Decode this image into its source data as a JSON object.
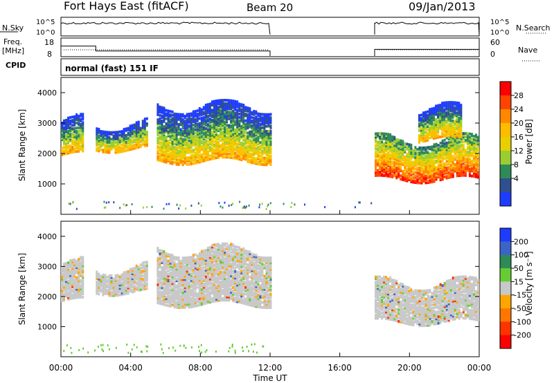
{
  "header": {
    "title": "Fort Hays East (fitACF)",
    "beam": "Beam 20",
    "date": "09/Jan/2013"
  },
  "panels": {
    "noise_label": "N.Sky",
    "noise_ticks": [
      "10^5",
      "10^0"
    ],
    "noise_right_ticks": [
      "10^5",
      "10^0"
    ],
    "noise_right_label": "N.Search",
    "freq_label": "Freq.",
    "freq_unit": "[MHz]",
    "freq_ticks": [
      "18",
      "8"
    ],
    "nave_ticks": [
      "60",
      "0"
    ],
    "nave_label": "Nave",
    "cpid_label": "CPID",
    "mode_text": "normal (fast) 151 IF"
  },
  "colorbars": {
    "power": {
      "label": "Power [dB]",
      "ticks": [
        "28",
        "24",
        "20",
        "16",
        "12",
        "8",
        "4"
      ],
      "colors": [
        "#ff0000",
        "#ff4400",
        "#ff8800",
        "#ffbb00",
        "#e8d000",
        "#9acd32",
        "#2e8b57",
        "#2f4f8f",
        "#1e3cff"
      ]
    },
    "velocity": {
      "label": "Velocity [m s⁻¹]",
      "ticks": [
        "200",
        "100",
        "50",
        "15",
        "-15",
        "-50",
        "-100",
        "-200"
      ],
      "colors": [
        "#1e3cff",
        "#3c64c8",
        "#2e8b57",
        "#66cc33",
        "#c8c8c8",
        "#ffa500",
        "#ff7700",
        "#ff3300",
        "#ff0000"
      ]
    }
  },
  "axes": {
    "ylabel": "Slant Range [km]",
    "yticks": [
      "4000",
      "3000",
      "2000",
      "1000"
    ],
    "xticks": [
      "00:00",
      "04:00",
      "08:00",
      "12:00",
      "16:00",
      "20:00",
      "00:00"
    ],
    "xlabel": "Time UT"
  },
  "chart_data": [
    {
      "type": "line",
      "name_label": "N.Sky",
      "x_hours_segments": [
        [
          0,
          12
        ],
        [
          18,
          24
        ]
      ],
      "level": "near 10^5",
      "ylim": [
        "10^0",
        "10^5"
      ]
    },
    {
      "type": "line",
      "freq_mhz_steps": [
        {
          "x": [
            0,
            2
          ],
          "y": 14
        },
        {
          "x": [
            2,
            12
          ],
          "y": 11
        },
        {
          "x": [
            18,
            24
          ],
          "y": 12
        }
      ],
      "nave_level": 30,
      "freq_ylim": [
        8,
        18
      ],
      "nave_ylim": [
        0,
        60
      ]
    },
    {
      "type": "heatmap",
      "quantity": "Power [dB]",
      "xlim": [
        0,
        24
      ],
      "ylim": [
        0,
        4500
      ],
      "bands": [
        {
          "x": [
            0.0,
            1.3
          ],
          "range": [
            2000,
            3100
          ],
          "peak_db": 24
        },
        {
          "x": [
            2.0,
            5.0
          ],
          "range": [
            2200,
            3000
          ],
          "peak_db": 20
        },
        {
          "x": [
            5.5,
            12.0
          ],
          "range": [
            1800,
            3600
          ],
          "peak_db": 24
        },
        {
          "x": [
            18.0,
            24.0
          ],
          "range": [
            1200,
            2500
          ],
          "peak_db": 28
        },
        {
          "x": [
            20.5,
            23.0
          ],
          "range": [
            2500,
            3500
          ],
          "peak_db": 8
        }
      ]
    },
    {
      "type": "heatmap",
      "quantity": "Velocity",
      "xlim": [
        0,
        24
      ],
      "ylim": [
        0,
        4500
      ],
      "bands": [
        {
          "x": [
            0.0,
            1.3
          ],
          "range": [
            1900,
            3100
          ],
          "velocity": 0
        },
        {
          "x": [
            2.0,
            5.0
          ],
          "range": [
            2200,
            3000
          ],
          "velocity": -15
        },
        {
          "x": [
            5.5,
            12.0
          ],
          "range": [
            1800,
            3600
          ],
          "velocity": 0
        },
        {
          "x": [
            18.0,
            24.0
          ],
          "range": [
            1200,
            2500
          ],
          "velocity": 0
        }
      ]
    }
  ]
}
